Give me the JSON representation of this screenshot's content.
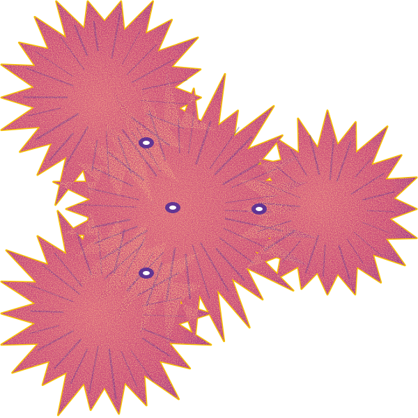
{
  "image": {
    "background_color": "#ffffff",
    "shape": "spiky three-lobed fractal blob",
    "symmetry": "three-fold",
    "palette": {
      "edge": "#f7c400",
      "highlight": "#ff9a3c",
      "body": "#c8447a",
      "mid": "#9c2f8c",
      "shadow": "#3a1f9a"
    },
    "interior_features": [
      "central-rift",
      "right-core",
      "upper-left-core",
      "lower-left-core"
    ]
  }
}
